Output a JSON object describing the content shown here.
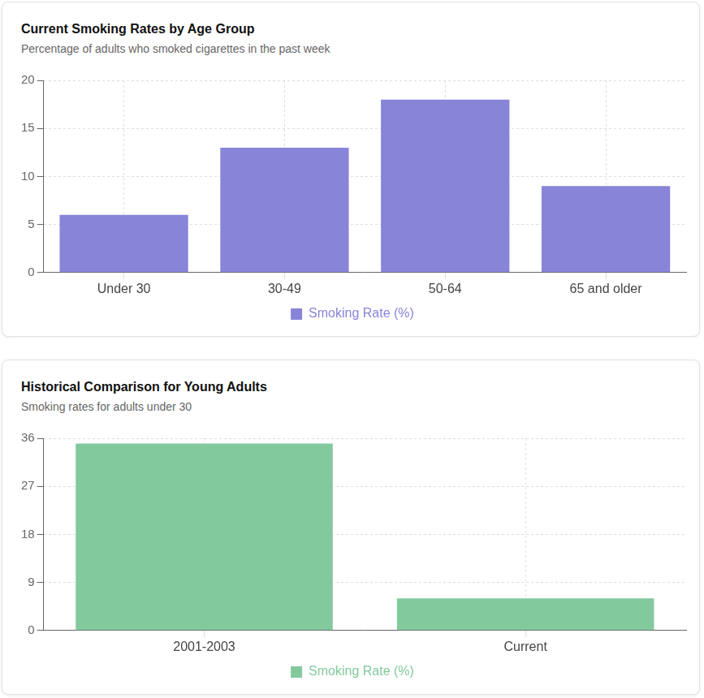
{
  "chart_data": [
    {
      "type": "bar",
      "title": "Current Smoking Rates by Age Group",
      "subtitle": "Percentage of adults who smoked cigarettes in the past week",
      "categories": [
        "Under 30",
        "30-49",
        "50-64",
        "65 and older"
      ],
      "series": [
        {
          "name": "Smoking Rate (%)",
          "color": "#8884d8",
          "values": [
            6,
            13,
            18,
            9
          ]
        }
      ],
      "ylim": [
        0,
        20
      ],
      "yticks": [
        0,
        5,
        10,
        15,
        20
      ],
      "grid": true,
      "legend": "bottom"
    },
    {
      "type": "bar",
      "title": "Historical Comparison for Young Adults",
      "subtitle": "Smoking rates for adults under 30",
      "categories": [
        "2001-2003",
        "Current"
      ],
      "series": [
        {
          "name": "Smoking Rate (%)",
          "color": "#82ca9d",
          "values": [
            35,
            6
          ]
        }
      ],
      "ylim": [
        0,
        36
      ],
      "yticks": [
        0,
        9,
        18,
        27,
        36
      ],
      "grid": true,
      "legend": "bottom"
    }
  ]
}
